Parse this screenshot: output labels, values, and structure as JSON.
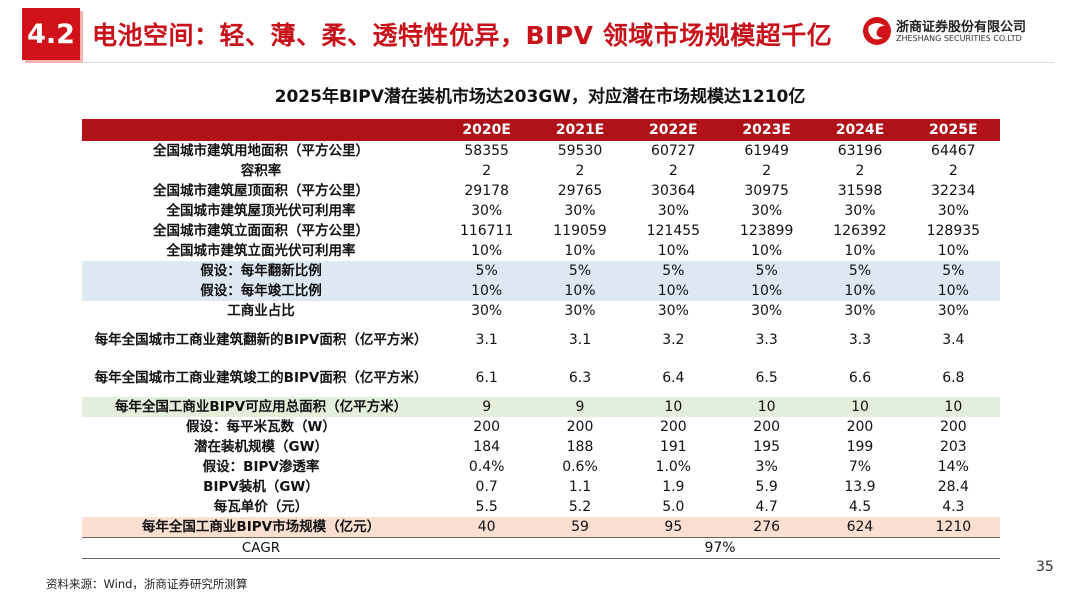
{
  "header": {
    "section": "4.2",
    "title": "电池空间：轻、薄、柔、透特性优异，BIPV 领域市场规模超千亿",
    "logo_cn": "浙商证券股份有限公司",
    "logo_en": "ZHESHANG SECURITIES CO.LTD",
    "accent_color": "#d1121b"
  },
  "subtitle": "2025年BIPV潜在装机市场达203GW，对应潜在市场规模达1210亿",
  "table": {
    "years": [
      "2020E",
      "2021E",
      "2022E",
      "2023E",
      "2024E",
      "2025E"
    ],
    "header_color": "#b0121a",
    "rows": [
      {
        "label": "全国城市建筑用地面积（平方公里）",
        "values": [
          "58355",
          "59530",
          "60727",
          "61949",
          "63196",
          "64467"
        ]
      },
      {
        "label": "容积率",
        "values": [
          "2",
          "2",
          "2",
          "2",
          "2",
          "2"
        ]
      },
      {
        "label": "全国城市建筑屋顶面积（平方公里）",
        "values": [
          "29178",
          "29765",
          "30364",
          "30975",
          "31598",
          "32234"
        ]
      },
      {
        "label": "全国城市建筑屋顶光伏可利用率",
        "values": [
          "30%",
          "30%",
          "30%",
          "30%",
          "30%",
          "30%"
        ]
      },
      {
        "label": "全国城市建筑立面面积（平方公里）",
        "values": [
          "116711",
          "119059",
          "121455",
          "123899",
          "126392",
          "128935"
        ]
      },
      {
        "label": "全国城市建筑立面光伏可利用率",
        "values": [
          "10%",
          "10%",
          "10%",
          "10%",
          "10%",
          "10%"
        ]
      },
      {
        "label": "假设：每年翻新比例",
        "values": [
          "5%",
          "5%",
          "5%",
          "5%",
          "5%",
          "5%"
        ]
      },
      {
        "label": "假设：每年竣工比例",
        "values": [
          "10%",
          "10%",
          "10%",
          "10%",
          "10%",
          "10%"
        ]
      },
      {
        "label": "工商业占比",
        "values": [
          "30%",
          "30%",
          "30%",
          "30%",
          "30%",
          "30%"
        ]
      },
      {
        "label": "每年全国城市工商业建筑翻新的BIPV面积（亿平方米）",
        "values": [
          "3.1",
          "3.1",
          "3.2",
          "3.3",
          "3.3",
          "3.4"
        ]
      },
      {
        "label": "每年全国城市工商业建筑竣工的BIPV面积（亿平方米）",
        "values": [
          "6.1",
          "6.3",
          "6.4",
          "6.5",
          "6.6",
          "6.8"
        ]
      },
      {
        "label": "每年全国工商业BIPV可应用总面积（亿平方米）",
        "values": [
          "9",
          "9",
          "10",
          "10",
          "10",
          "10"
        ]
      },
      {
        "label": "假设：每平米瓦数（W）",
        "values": [
          "200",
          "200",
          "200",
          "200",
          "200",
          "200"
        ]
      },
      {
        "label": "潜在装机规模（GW）",
        "values": [
          "184",
          "188",
          "191",
          "195",
          "199",
          "203"
        ]
      },
      {
        "label": "假设：BIPV渗透率",
        "values": [
          "0.4%",
          "0.6%",
          "1.0%",
          "3%",
          "7%",
          "14%"
        ]
      },
      {
        "label": "BIPV装机（GW）",
        "values": [
          "0.7",
          "1.1",
          "1.9",
          "5.9",
          "13.9",
          "28.4"
        ]
      },
      {
        "label": "每瓦单价（元）",
        "values": [
          "5.5",
          "5.2",
          "5.0",
          "4.7",
          "4.5",
          "4.3"
        ]
      },
      {
        "label": "每年全国工商业BIPV市场规模（亿元）",
        "values": [
          "40",
          "59",
          "95",
          "276",
          "624",
          "1210"
        ]
      }
    ],
    "cagr": {
      "label": "CAGR",
      "value": "97%"
    }
  },
  "footer": {
    "source": "资料来源：Wind，浙商证券研究所测算",
    "page_number": "35"
  }
}
